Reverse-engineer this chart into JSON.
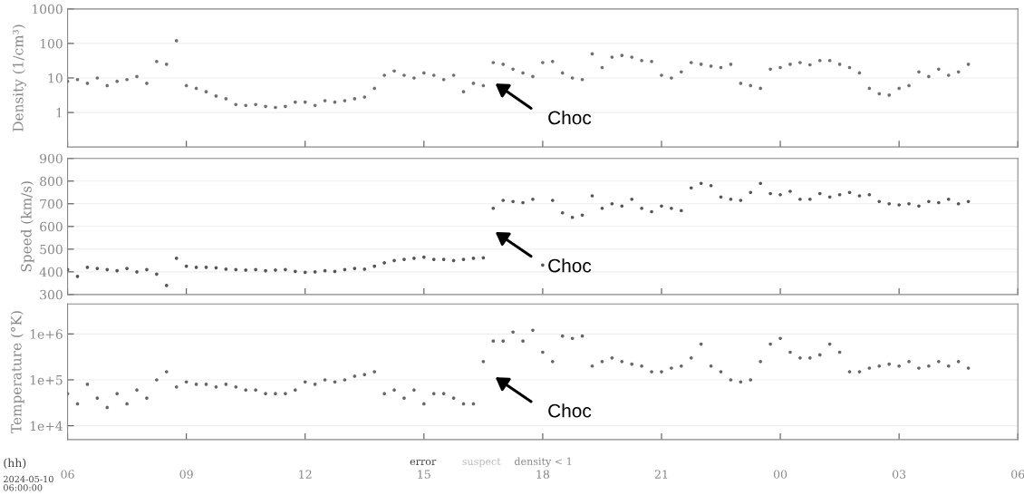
{
  "chart_data": [
    {
      "type": "scatter",
      "ylabel": "Density (1/cm³)",
      "log": "y",
      "xlim": [
        6,
        30
      ],
      "ylim": [
        0.1,
        1000
      ],
      "xticks": [
        {
          "value": 6,
          "label": null
        },
        {
          "value": 9,
          "label": null
        },
        {
          "value": 12,
          "label": null
        },
        {
          "value": 15,
          "label": null
        },
        {
          "value": 18,
          "label": null
        },
        {
          "value": 21,
          "label": null
        },
        {
          "value": 24,
          "label": null
        },
        {
          "value": 27,
          "label": null
        },
        {
          "value": 30,
          "label": null
        }
      ],
      "yticks": [
        1,
        10,
        100,
        1000
      ],
      "tick_labels": "y",
      "grid": "y",
      "marker": "circle",
      "x": [
        6.0,
        6.25,
        6.5,
        6.75,
        7.0,
        7.25,
        7.5,
        7.75,
        8.0,
        8.25,
        8.5,
        8.75,
        9.0,
        9.25,
        9.5,
        9.75,
        10.0,
        10.25,
        10.5,
        10.75,
        11.0,
        11.25,
        11.5,
        11.75,
        12.0,
        12.25,
        12.5,
        12.75,
        13.0,
        13.25,
        13.5,
        13.75,
        14.0,
        14.25,
        14.5,
        14.75,
        15.0,
        15.25,
        15.5,
        15.75,
        16.0,
        16.25,
        16.5,
        16.75,
        17.0,
        17.25,
        17.5,
        17.75,
        18.0,
        18.25,
        18.5,
        18.75,
        19.0,
        19.25,
        19.5,
        19.75,
        20.0,
        20.25,
        20.5,
        20.75,
        21.0,
        21.25,
        21.5,
        21.75,
        22.0,
        22.25,
        22.5,
        22.75,
        23.0,
        23.25,
        23.5,
        23.75,
        24.0,
        24.25,
        24.5,
        24.75,
        25.0,
        25.25,
        25.5,
        25.75,
        26.0,
        26.25,
        26.5,
        26.75,
        27.0,
        27.25,
        27.5,
        27.75,
        28.0,
        28.25,
        28.5,
        28.75
      ],
      "series": [
        {
          "color": "#707070",
          "values": [
            8,
            9,
            7,
            10,
            6,
            8,
            9,
            11,
            7,
            30,
            25,
            120,
            6,
            5,
            4,
            3,
            2.5,
            1.7,
            1.6,
            1.7,
            1.5,
            1.4,
            1.5,
            2,
            2,
            1.6,
            2.2,
            2,
            2.2,
            2.5,
            2.8,
            5,
            12,
            16,
            12,
            10,
            14,
            12,
            9,
            12,
            4,
            7,
            6,
            28,
            25,
            18,
            14,
            11,
            28,
            30,
            14,
            10,
            9,
            50,
            20,
            40,
            45,
            40,
            32,
            30,
            12,
            10,
            15,
            28,
            25,
            22,
            20,
            25,
            7,
            6,
            5,
            18,
            20,
            25,
            28,
            24,
            32,
            32,
            25,
            20,
            14,
            5,
            3.5,
            3.2,
            5,
            6,
            15,
            11,
            18,
            12,
            15,
            25
          ]
        }
      ],
      "annotations": [
        "Choc"
      ]
    },
    {
      "type": "scatter",
      "ylabel": "Speed (km/s)",
      "xlim": [
        6,
        30
      ],
      "ylim": [
        300,
        900
      ],
      "xticks": [
        {
          "value": 6,
          "label": null
        },
        {
          "value": 9,
          "label": null
        },
        {
          "value": 12,
          "label": null
        },
        {
          "value": 15,
          "label": null
        },
        {
          "value": 18,
          "label": null
        },
        {
          "value": 21,
          "label": null
        },
        {
          "value": 24,
          "label": null
        },
        {
          "value": 27,
          "label": null
        },
        {
          "value": 30,
          "label": null
        }
      ],
      "yticks": [
        300,
        400,
        500,
        600,
        700,
        800,
        900
      ],
      "tick_labels": "y",
      "grid": "y",
      "marker": "circle",
      "x": [
        6.0,
        6.25,
        6.5,
        6.75,
        7.0,
        7.25,
        7.5,
        7.75,
        8.0,
        8.25,
        8.5,
        8.75,
        9.0,
        9.25,
        9.5,
        9.75,
        10.0,
        10.25,
        10.5,
        10.75,
        11.0,
        11.25,
        11.5,
        11.75,
        12.0,
        12.25,
        12.5,
        12.75,
        13.0,
        13.25,
        13.5,
        13.75,
        14.0,
        14.25,
        14.5,
        14.75,
        15.0,
        15.25,
        15.5,
        15.75,
        16.0,
        16.25,
        16.5,
        16.75,
        17.0,
        17.25,
        17.5,
        17.75,
        18.0,
        18.25,
        18.5,
        18.75,
        19.0,
        19.25,
        19.5,
        19.75,
        20.0,
        20.25,
        20.5,
        20.75,
        21.0,
        21.25,
        21.5,
        21.75,
        22.0,
        22.25,
        22.5,
        22.75,
        23.0,
        23.25,
        23.5,
        23.75,
        24.0,
        24.25,
        24.5,
        24.75,
        25.0,
        25.25,
        25.5,
        25.75,
        26.0,
        26.25,
        26.5,
        26.75,
        27.0,
        27.25,
        27.5,
        27.75,
        28.0,
        28.25,
        28.5,
        28.75
      ],
      "series": [
        {
          "color": "#555555",
          "values": [
            410,
            380,
            420,
            415,
            410,
            405,
            415,
            400,
            410,
            390,
            340,
            460,
            425,
            420,
            420,
            418,
            412,
            410,
            408,
            410,
            405,
            408,
            410,
            402,
            398,
            400,
            405,
            402,
            410,
            415,
            412,
            425,
            440,
            450,
            455,
            460,
            465,
            455,
            455,
            450,
            455,
            460,
            462,
            680,
            715,
            710,
            705,
            720,
            430,
            715,
            660,
            640,
            650,
            735,
            680,
            700,
            690,
            720,
            680,
            665,
            690,
            680,
            670,
            770,
            790,
            780,
            730,
            720,
            715,
            750,
            790,
            745,
            740,
            755,
            720,
            720,
            745,
            730,
            740,
            750,
            735,
            740,
            710,
            700,
            695,
            700,
            690,
            710,
            705,
            720,
            700,
            710
          ]
        }
      ],
      "annotations": [
        "Choc"
      ]
    },
    {
      "type": "scatter",
      "ylabel": "Temperature (°K)",
      "log": "y",
      "xlim": [
        6,
        30
      ],
      "ylim": [
        5000,
        4500000
      ],
      "xticks": [
        {
          "value": 6,
          "label": "06"
        },
        {
          "value": 9,
          "label": "09"
        },
        {
          "value": 12,
          "label": "12"
        },
        {
          "value": 15,
          "label": "15"
        },
        {
          "value": 18,
          "label": "18"
        },
        {
          "value": 21,
          "label": "21"
        },
        {
          "value": 24,
          "label": "00"
        },
        {
          "value": 27,
          "label": "03"
        },
        {
          "value": 30,
          "label": "06"
        }
      ],
      "yticks": [
        {
          "value": 10000,
          "label": "1e+4"
        },
        {
          "value": 100000,
          "label": "1e+5"
        },
        {
          "value": 1000000,
          "label": "1e+6"
        }
      ],
      "grid": "y",
      "marker": "circle",
      "x": [
        6.0,
        6.25,
        6.5,
        6.75,
        7.0,
        7.25,
        7.5,
        7.75,
        8.0,
        8.25,
        8.5,
        8.75,
        9.0,
        9.25,
        9.5,
        9.75,
        10.0,
        10.25,
        10.5,
        10.75,
        11.0,
        11.25,
        11.5,
        11.75,
        12.0,
        12.25,
        12.5,
        12.75,
        13.0,
        13.25,
        13.5,
        13.75,
        14.0,
        14.25,
        14.5,
        14.75,
        15.0,
        15.25,
        15.5,
        15.75,
        16.0,
        16.25,
        16.5,
        16.75,
        17.0,
        17.25,
        17.5,
        17.75,
        18.0,
        18.25,
        18.5,
        18.75,
        19.0,
        19.25,
        19.5,
        19.75,
        20.0,
        20.25,
        20.5,
        20.75,
        21.0,
        21.25,
        21.5,
        21.75,
        22.0,
        22.25,
        22.5,
        22.75,
        23.0,
        23.25,
        23.5,
        23.75,
        24.0,
        24.25,
        24.5,
        24.75,
        25.0,
        25.25,
        25.5,
        25.75,
        26.0,
        26.25,
        26.5,
        26.75,
        27.0,
        27.25,
        27.5,
        27.75,
        28.0,
        28.25,
        28.5,
        28.75
      ],
      "series": [
        {
          "color": "#666666",
          "values": [
            50000,
            30000,
            80000,
            40000,
            25000,
            50000,
            30000,
            60000,
            40000,
            100000,
            150000,
            70000,
            90000,
            80000,
            80000,
            70000,
            80000,
            70000,
            60000,
            60000,
            50000,
            50000,
            50000,
            60000,
            90000,
            80000,
            100000,
            90000,
            100000,
            120000,
            130000,
            150000,
            50000,
            60000,
            40000,
            60000,
            30000,
            50000,
            50000,
            40000,
            30000,
            30000,
            250000,
            700000,
            700000,
            1100000,
            700000,
            1200000,
            400000,
            250000,
            900000,
            800000,
            900000,
            200000,
            250000,
            300000,
            250000,
            220000,
            200000,
            150000,
            150000,
            180000,
            200000,
            300000,
            600000,
            200000,
            150000,
            100000,
            90000,
            100000,
            250000,
            600000,
            800000,
            400000,
            300000,
            300000,
            350000,
            600000,
            400000,
            150000,
            150000,
            180000,
            200000,
            220000,
            200000,
            250000,
            180000,
            200000,
            250000,
            200000,
            250000,
            180000
          ]
        }
      ],
      "annotations": [
        "Choc",
        "error",
        "suspect",
        "density < 1",
        "(hh)",
        "2024-05-10\n06:00:00"
      ]
    }
  ]
}
